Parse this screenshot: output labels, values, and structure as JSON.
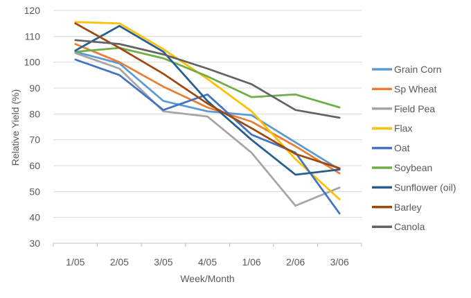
{
  "chart_data": {
    "type": "line",
    "title": "",
    "xlabel": "Week/Month",
    "ylabel": "Relative Yield (%)",
    "categories": [
      "1/05",
      "2/05",
      "3/05",
      "4/05",
      "1/06",
      "2/06",
      "3/06"
    ],
    "ylim": [
      30,
      120
    ],
    "ytick_step": 10,
    "yticks": [
      30,
      40,
      50,
      60,
      70,
      80,
      90,
      100,
      110,
      120
    ],
    "grid": "horizontal",
    "legend_position": "right",
    "series": [
      {
        "name": "Grain Corn",
        "color": "#5B9BD5",
        "values": [
          104,
          99.5,
          85,
          81,
          79.5,
          69,
          58.5
        ]
      },
      {
        "name": "Sp Wheat",
        "color": "#ED7D31",
        "values": [
          107,
          100,
          90.5,
          82.5,
          77,
          67.5,
          57
        ]
      },
      {
        "name": "Field Pea",
        "color": "#A5A5A5",
        "values": [
          103.5,
          97.5,
          81,
          79,
          65,
          44.5,
          51.5
        ]
      },
      {
        "name": "Flax",
        "color": "#FFC000",
        "values": [
          115.5,
          115,
          105,
          93.5,
          81,
          62.5,
          47
        ]
      },
      {
        "name": "Oat",
        "color": "#4472C4",
        "values": [
          101,
          95,
          81.5,
          87.5,
          72,
          65,
          41.5
        ]
      },
      {
        "name": "Soybean",
        "color": "#70AD47",
        "values": [
          104,
          105.5,
          101.5,
          94.5,
          86.5,
          87.5,
          82.5
        ]
      },
      {
        "name": "Sunflower (oil)",
        "color": "#255E91",
        "values": [
          104.5,
          114,
          104,
          85,
          70,
          56.5,
          58.5
        ]
      },
      {
        "name": "Barley",
        "color": "#9E480E",
        "values": [
          115,
          105.5,
          95.5,
          84,
          74.5,
          64.5,
          59
        ]
      },
      {
        "name": "Canola",
        "color": "#636363",
        "values": [
          108.5,
          107,
          103,
          97.5,
          91.5,
          81.5,
          78.5
        ]
      }
    ],
    "colors": {
      "gridline": "#D9D9D9",
      "axis_line": "#BFBFBF",
      "tick_text": "#595959"
    }
  }
}
